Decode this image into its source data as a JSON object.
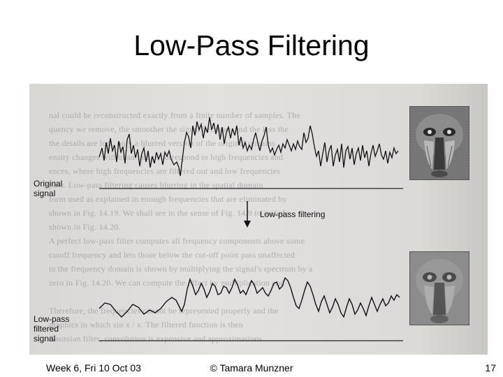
{
  "slide": {
    "title": "Low-Pass Filtering"
  },
  "figure": {
    "labels": {
      "original": [
        "Original",
        "signal"
      ],
      "filtered": [
        "Low-pass",
        "filtered",
        "signal"
      ],
      "operation": "Low-pass filtering"
    },
    "icons": [
      "down-arrow-icon",
      "baboon-photo",
      "baboon-photo-blurred"
    ]
  },
  "footer": {
    "left": "Week 6, Fri 10 Oct 03",
    "center": "© Tamara Munzner",
    "right": "17"
  }
}
